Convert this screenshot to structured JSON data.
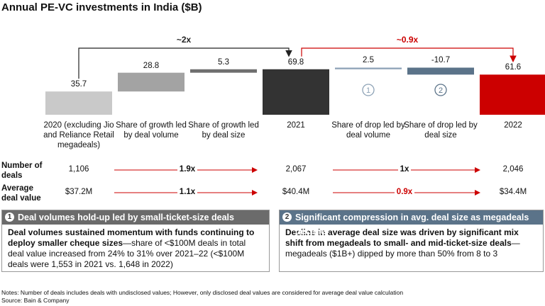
{
  "chart_data": {
    "type": "waterfall",
    "title": "Annual PE-VC investments in India ($B)",
    "categories": [
      "2020 (excluding Jio and Reliance Retail megadeals)",
      "Share of growth led by deal volume",
      "Share of growth led by deal size",
      "2021",
      "Share of drop led by deal volume",
      "Share of drop led by deal size",
      "2022"
    ],
    "values": [
      35.7,
      28.8,
      5.3,
      69.8,
      2.5,
      -10.7,
      61.6
    ],
    "is_total": [
      true,
      false,
      false,
      true,
      false,
      false,
      true
    ],
    "colors": [
      "#c9c9c9",
      "#a3a3a3",
      "#6f6f6f",
      "#333333",
      "#8da2b6",
      "#5b7389",
      "#cc0000"
    ],
    "markers": [
      null,
      null,
      null,
      null,
      "1",
      "2",
      null
    ],
    "annotations": [
      {
        "text": "~2x",
        "from": 0,
        "to": 3,
        "color": "#222222"
      },
      {
        "text": "~0.9x",
        "from": 3,
        "to": 6,
        "color": "#cc0000"
      }
    ]
  },
  "table": {
    "rows": [
      {
        "label": "Number of deals",
        "cells": [
          "1,106",
          "1.9x",
          "2,067",
          "1x",
          "2,046"
        ]
      },
      {
        "label": "Average deal value",
        "cells": [
          "$37.2M",
          "1.1x",
          "$40.4M",
          "0.9x",
          "$34.4M"
        ]
      }
    ]
  },
  "panels": [
    {
      "number": "1",
      "header": "Deal volumes hold-up led by small-ticket-size deals",
      "bold": "Deal volumes sustained momentum with funds continuing to deploy smaller cheque sizes",
      "text": "—share of <$100M deals in total deal value increased from 24% to 31% over 2021–22 (<$100M deals were 1,553 in 2021 vs. 1,648 in 2022)",
      "color": "#6b6b6b"
    },
    {
      "number": "2",
      "header": "Significant compression in avg. deal size as megadeals decline",
      "bold": "Decline in average deal size was driven by significant mix shift from megadeals to small- and mid-ticket-size deals",
      "text": "—megadeals ($1B+) dipped by more than 50% from 8 to 3",
      "color": "#5b7389"
    }
  ],
  "notes": [
    "Notes: Number of deals includes deals with undisclosed values; However, only disclosed deal values are considered for average deal value calculation",
    "Source: Bain & Company"
  ]
}
